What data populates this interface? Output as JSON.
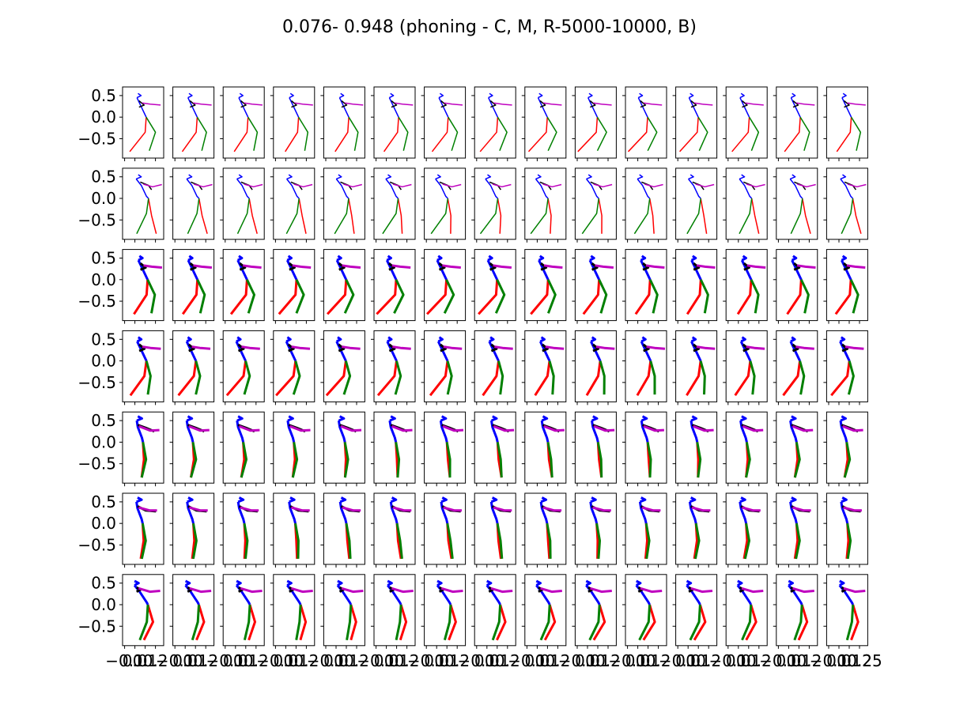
{
  "chart_data": {
    "type": "line",
    "title": "0.076- 0.948 (phoning - C, M, R-5000-10000, B)",
    "grid": {
      "rows": 7,
      "cols": 15
    },
    "ylim": [
      -0.95,
      0.7
    ],
    "xlim": [
      -0.12,
      0.28
    ],
    "yticks": [
      0.5,
      0.0,
      -0.5
    ],
    "ytick_labels": [
      "0.5",
      "0.0",
      "−0.5"
    ],
    "xticks": [
      -0.1,
      0.0,
      0.1,
      0.2
    ],
    "bottom_xtick_labels": [
      "−0.1",
      "0.0",
      "0.1",
      "0.2"
    ],
    "last_xtick_label": "0.25",
    "grid_on": false,
    "series_colors": {
      "torso": "#0000ff",
      "arm_left": "#000000",
      "arm_right": "#bf00bf",
      "leg_left": "#ff0000",
      "leg_right": "#008000"
    },
    "row_line_widths": [
      1.5,
      1.5,
      3,
      3,
      3,
      3,
      3
    ],
    "poses": [
      {
        "head": [
          [
            0.02,
            0.45
          ],
          [
            0.06,
            0.5
          ],
          [
            0.03,
            0.55
          ]
        ],
        "torso": [
          [
            0.02,
            0.45
          ],
          [
            0.05,
            0.3
          ],
          [
            0.1,
            0.05
          ],
          [
            0.11,
            0.0
          ]
        ],
        "arm_left": [
          [
            0.04,
            0.38
          ],
          [
            0.09,
            0.28
          ],
          [
            0.04,
            0.23
          ]
        ],
        "arm_right": [
          [
            0.07,
            0.33
          ],
          [
            0.15,
            0.3
          ],
          [
            0.25,
            0.28
          ]
        ],
        "leg_left": [
          [
            0.11,
            0.0
          ],
          [
            0.1,
            -0.35
          ],
          [
            -0.05,
            -0.8
          ]
        ],
        "leg_right": [
          [
            0.11,
            0.0
          ],
          [
            0.2,
            -0.35
          ],
          [
            0.14,
            -0.78
          ]
        ]
      },
      {
        "head": [
          [
            0.0,
            0.45
          ],
          [
            0.05,
            0.5
          ],
          [
            0.02,
            0.55
          ]
        ],
        "torso": [
          [
            0.0,
            0.45
          ],
          [
            0.05,
            0.3
          ],
          [
            0.1,
            0.05
          ],
          [
            0.12,
            0.0
          ]
        ],
        "arm_left": [
          [
            0.04,
            0.38
          ],
          [
            0.12,
            0.3
          ],
          [
            0.15,
            0.2
          ]
        ],
        "arm_right": [
          [
            0.07,
            0.33
          ],
          [
            0.16,
            0.27
          ],
          [
            0.25,
            0.32
          ]
        ],
        "leg_left": [
          [
            0.12,
            0.0
          ],
          [
            0.15,
            -0.4
          ],
          [
            0.17,
            -0.82
          ]
        ],
        "leg_right": [
          [
            0.12,
            0.0
          ],
          [
            0.1,
            -0.35
          ],
          [
            -0.02,
            -0.82
          ]
        ]
      },
      {
        "head": [
          [
            0.02,
            0.45
          ],
          [
            0.06,
            0.5
          ],
          [
            0.03,
            0.55
          ]
        ],
        "torso": [
          [
            0.02,
            0.45
          ],
          [
            0.05,
            0.3
          ],
          [
            0.1,
            0.05
          ],
          [
            0.11,
            0.0
          ]
        ],
        "arm_left": [
          [
            0.04,
            0.38
          ],
          [
            0.09,
            0.28
          ],
          [
            0.04,
            0.23
          ]
        ],
        "arm_right": [
          [
            0.07,
            0.33
          ],
          [
            0.15,
            0.3
          ],
          [
            0.25,
            0.28
          ]
        ],
        "leg_left": [
          [
            0.11,
            0.0
          ],
          [
            0.1,
            -0.35
          ],
          [
            -0.05,
            -0.8
          ]
        ],
        "leg_right": [
          [
            0.11,
            0.0
          ],
          [
            0.18,
            -0.35
          ],
          [
            0.12,
            -0.78
          ]
        ]
      },
      {
        "head": [
          [
            0.02,
            0.45
          ],
          [
            0.06,
            0.5
          ],
          [
            0.03,
            0.55
          ]
        ],
        "torso": [
          [
            0.02,
            0.45
          ],
          [
            0.05,
            0.3
          ],
          [
            0.1,
            0.05
          ],
          [
            0.11,
            0.0
          ]
        ],
        "arm_left": [
          [
            0.04,
            0.38
          ],
          [
            0.09,
            0.28
          ],
          [
            0.04,
            0.23
          ]
        ],
        "arm_right": [
          [
            0.07,
            0.33
          ],
          [
            0.15,
            0.3
          ],
          [
            0.25,
            0.28
          ]
        ],
        "leg_left": [
          [
            0.11,
            0.0
          ],
          [
            0.09,
            -0.35
          ],
          [
            -0.05,
            -0.8
          ]
        ],
        "leg_right": [
          [
            0.11,
            0.0
          ],
          [
            0.15,
            -0.35
          ],
          [
            0.12,
            -0.78
          ]
        ]
      },
      {
        "head": [
          [
            0.03,
            0.5
          ],
          [
            0.08,
            0.55
          ],
          [
            0.04,
            0.6
          ]
        ],
        "torso": [
          [
            0.03,
            0.5
          ],
          [
            0.04,
            0.35
          ],
          [
            0.08,
            0.1
          ],
          [
            0.09,
            0.0
          ]
        ],
        "arm_left": [
          [
            0.04,
            0.4
          ],
          [
            0.12,
            0.33
          ],
          [
            0.2,
            0.25
          ]
        ],
        "arm_right": [
          [
            0.05,
            0.37
          ],
          [
            0.16,
            0.27
          ],
          [
            0.25,
            0.28
          ]
        ],
        "leg_left": [
          [
            0.09,
            0.0
          ],
          [
            0.1,
            -0.4
          ],
          [
            0.1,
            -0.82
          ]
        ],
        "leg_right": [
          [
            0.09,
            0.0
          ],
          [
            0.12,
            -0.4
          ],
          [
            0.1,
            -0.82
          ]
        ]
      },
      {
        "head": [
          [
            0.03,
            0.5
          ],
          [
            0.08,
            0.55
          ],
          [
            0.04,
            0.6
          ]
        ],
        "torso": [
          [
            0.03,
            0.5
          ],
          [
            0.04,
            0.35
          ],
          [
            0.08,
            0.1
          ],
          [
            0.09,
            0.0
          ]
        ],
        "arm_left": [
          [
            0.04,
            0.4
          ],
          [
            0.12,
            0.3
          ],
          [
            0.22,
            0.28
          ]
        ],
        "arm_right": [
          [
            0.05,
            0.37
          ],
          [
            0.16,
            0.3
          ],
          [
            0.23,
            0.3
          ]
        ],
        "leg_left": [
          [
            0.09,
            0.0
          ],
          [
            0.1,
            -0.4
          ],
          [
            0.1,
            -0.82
          ]
        ],
        "leg_right": [
          [
            0.09,
            0.0
          ],
          [
            0.12,
            -0.4
          ],
          [
            0.11,
            -0.82
          ]
        ]
      },
      {
        "head": [
          [
            0.0,
            0.45
          ],
          [
            0.04,
            0.5
          ],
          [
            0.0,
            0.55
          ]
        ],
        "torso": [
          [
            0.0,
            0.45
          ],
          [
            0.05,
            0.3
          ],
          [
            0.12,
            0.05
          ],
          [
            0.13,
            0.0
          ]
        ],
        "arm_left": [
          [
            0.02,
            0.4
          ],
          [
            0.06,
            0.35
          ],
          [
            0.02,
            0.3
          ]
        ],
        "arm_right": [
          [
            0.04,
            0.38
          ],
          [
            0.15,
            0.3
          ],
          [
            0.25,
            0.32
          ]
        ],
        "leg_left": [
          [
            0.13,
            0.0
          ],
          [
            0.18,
            -0.4
          ],
          [
            0.1,
            -0.82
          ]
        ],
        "leg_right": [
          [
            0.13,
            0.0
          ],
          [
            0.12,
            -0.4
          ],
          [
            0.06,
            -0.82
          ]
        ]
      }
    ]
  }
}
